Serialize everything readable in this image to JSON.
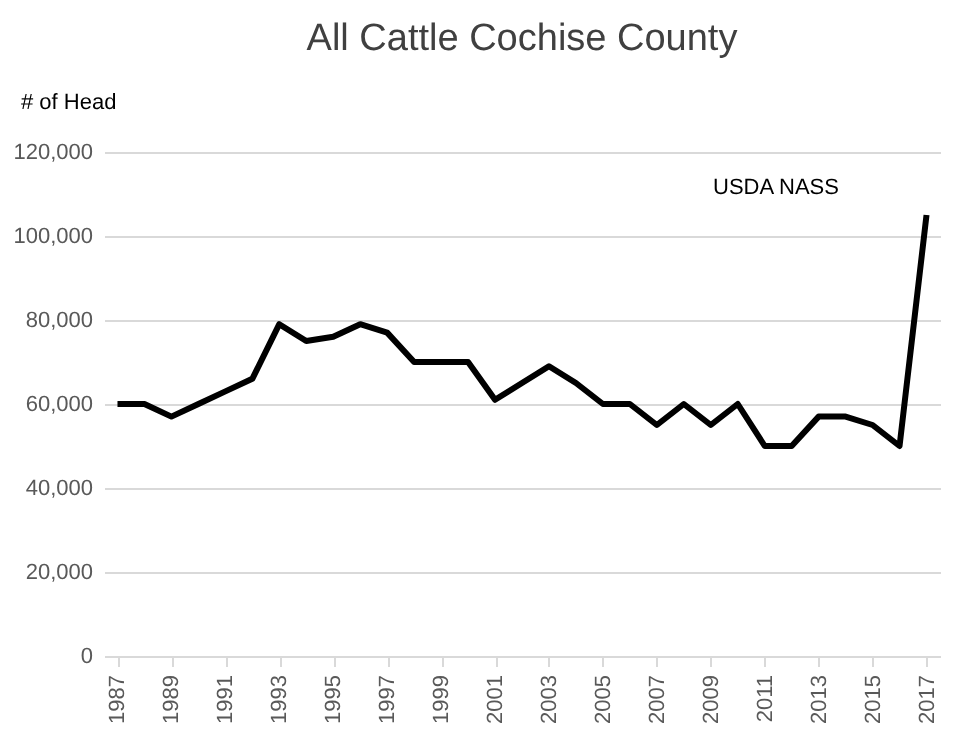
{
  "chart_data": {
    "type": "line",
    "title": "All Cattle Cochise County",
    "ylabel": "# of Head",
    "annotations": [
      "USDA NASS"
    ],
    "x": [
      1987,
      1988,
      1989,
      1990,
      1991,
      1992,
      1993,
      1994,
      1995,
      1996,
      1997,
      1998,
      1999,
      2000,
      2001,
      2002,
      2003,
      2004,
      2005,
      2006,
      2007,
      2008,
      2009,
      2010,
      2011,
      2012,
      2013,
      2014,
      2015,
      2016,
      2017
    ],
    "series": [
      {
        "color": "#000000",
        "values": [
          60000,
          60000,
          57000,
          60000,
          63000,
          66000,
          79000,
          75000,
          76000,
          79000,
          77000,
          70000,
          70000,
          70000,
          61000,
          65000,
          69000,
          65000,
          60000,
          60000,
          55000,
          60000,
          55000,
          60000,
          50000,
          50000,
          57000,
          57000,
          55000,
          50000,
          105000
        ]
      }
    ],
    "xlim": [
      1986.5,
      2017.5
    ],
    "xticks": [
      1987,
      1989,
      1991,
      1993,
      1995,
      1997,
      1999,
      2001,
      2003,
      2005,
      2007,
      2009,
      2011,
      2013,
      2015,
      2017
    ],
    "ylim": [
      0,
      120000
    ],
    "yticks": [
      0,
      {
        "value": 20000,
        "label": "20,000"
      },
      {
        "value": 40000,
        "label": "40,000"
      },
      {
        "value": 60000,
        "label": "60,000"
      },
      {
        "value": 80000,
        "label": "80,000"
      },
      {
        "value": 100000,
        "label": "100,000"
      },
      {
        "value": 120000,
        "label": "120,000"
      }
    ],
    "grid": "y",
    "marker": "none",
    "line_style": "solid"
  }
}
